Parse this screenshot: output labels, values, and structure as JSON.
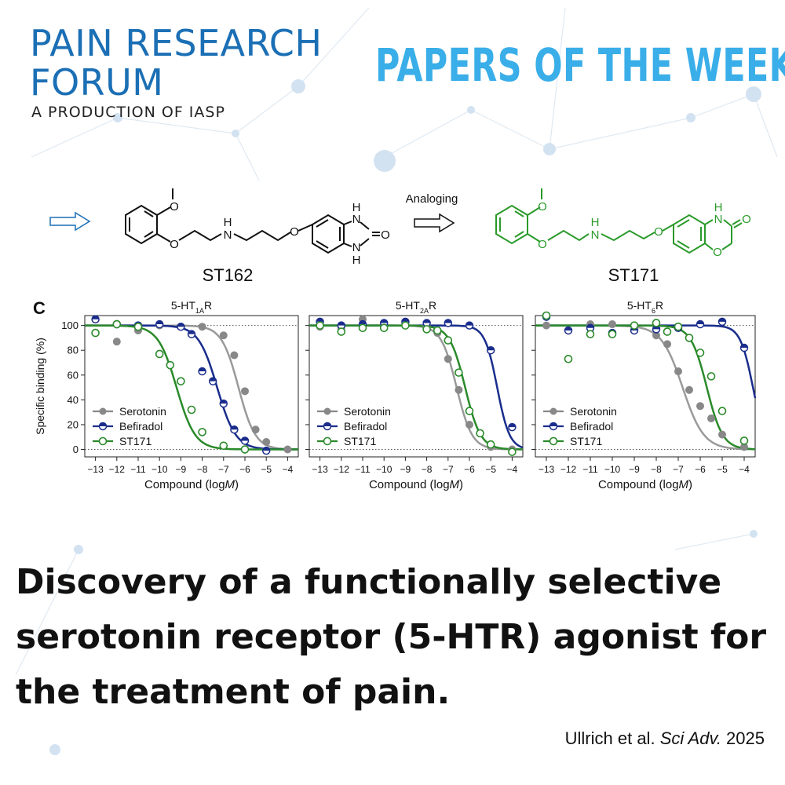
{
  "brand": {
    "line1": "PAIN RESEARCH",
    "line2": "FORUM",
    "sub": "A PRODUCTION OF IASP",
    "series": "PAPERS OF THE WEEK",
    "colors": {
      "brand": "#1b6fb5",
      "series": "#3aaee8"
    }
  },
  "chemistry": {
    "analoging_label": "Analoging",
    "compound_a": "ST162",
    "compound_b": "ST171",
    "atoms": {
      "O": "O",
      "N": "N",
      "H": "H"
    },
    "colors": {
      "compound_a": "#111111",
      "compound_b": "#2a9a2a",
      "arrow_left": "#1b6fb5"
    }
  },
  "chart_data": {
    "panel_label": "C",
    "type": "line",
    "ylabel": "Specific binding (%)",
    "xlabel": "Compound (logM)",
    "xlabel_parts": [
      "Compound (log",
      "M",
      ")"
    ],
    "xlim": [
      -13.5,
      -3.5
    ],
    "ylim": [
      -6,
      108
    ],
    "xticks": [
      -13,
      -12,
      -11,
      -10,
      -9,
      -8,
      -7,
      -6,
      -5,
      -4
    ],
    "yticks": [
      0,
      20,
      40,
      60,
      80,
      100
    ],
    "xtick_labels": [
      "−13",
      "−12",
      "−11",
      "−10",
      "−9",
      "−8",
      "−7",
      "−6",
      "−5",
      "−4"
    ],
    "reference_lines": [
      0,
      100
    ],
    "legend_position": "bottom-left",
    "series_styles": {
      "Serotonin": {
        "color": "#888888",
        "marker": "filled"
      },
      "Befiradol": {
        "color": "#1a2d8c",
        "marker": "half-filled"
      },
      "ST171": {
        "color": "#2a8a2a",
        "marker": "open"
      }
    },
    "panels": [
      {
        "title": "5-HT1AR",
        "title_main": "5-HT",
        "title_sub": "1A",
        "title_end": "R",
        "series": [
          {
            "name": "Serotonin",
            "ec50_log": -6.3,
            "hill": 1.1,
            "points": [
              [
                -12,
                87
              ],
              [
                -11,
                96
              ],
              [
                -10,
                100
              ],
              [
                -9,
                99
              ],
              [
                -8,
                99
              ],
              [
                -7,
                92
              ],
              [
                -6.5,
                76
              ],
              [
                -6,
                47
              ],
              [
                -5.5,
                16
              ],
              [
                -5,
                6
              ],
              [
                -4,
                0
              ]
            ]
          },
          {
            "name": "Befiradol",
            "ec50_log": -7.3,
            "hill": 1.0,
            "points": [
              [
                -13,
                105
              ],
              [
                -12,
                101
              ],
              [
                -11,
                100
              ],
              [
                -10,
                101
              ],
              [
                -9,
                99
              ],
              [
                -8.5,
                93
              ],
              [
                -8,
                63
              ],
              [
                -7.5,
                55
              ],
              [
                -7,
                37
              ],
              [
                -6.5,
                16
              ],
              [
                -6,
                7
              ],
              [
                -5,
                -1
              ]
            ]
          },
          {
            "name": "ST171",
            "ec50_log": -9.2,
            "hill": 1.0,
            "points": [
              [
                -13,
                94
              ],
              [
                -12,
                101
              ],
              [
                -11,
                99
              ],
              [
                -10,
                77
              ],
              [
                -9.5,
                68
              ],
              [
                -9,
                55
              ],
              [
                -8.5,
                32
              ],
              [
                -8,
                14
              ],
              [
                -7,
                3
              ],
              [
                -6,
                0
              ]
            ]
          }
        ]
      },
      {
        "title": "5-HT2AR",
        "title_main": "5-HT",
        "title_sub": "2A",
        "title_end": "R",
        "series": [
          {
            "name": "Serotonin",
            "ec50_log": -6.6,
            "hill": 1.2,
            "points": [
              [
                -13,
                99
              ],
              [
                -12,
                98
              ],
              [
                -11,
                105
              ],
              [
                -10,
                101
              ],
              [
                -9,
                102
              ],
              [
                -8,
                100
              ],
              [
                -7.5,
                94
              ],
              [
                -7,
                73
              ],
              [
                -6.5,
                48
              ],
              [
                -6,
                20
              ],
              [
                -5,
                2
              ],
              [
                -4,
                0
              ]
            ]
          },
          {
            "name": "Befiradol",
            "ec50_log": -4.7,
            "hill": 1.5,
            "points": [
              [
                -13,
                103
              ],
              [
                -12,
                100
              ],
              [
                -11,
                101
              ],
              [
                -10,
                102
              ],
              [
                -9,
                103
              ],
              [
                -8,
                102
              ],
              [
                -7,
                102
              ],
              [
                -6,
                100
              ],
              [
                -5,
                80
              ],
              [
                -4,
                18
              ]
            ]
          },
          {
            "name": "ST171",
            "ec50_log": -6.2,
            "hill": 1.2,
            "points": [
              [
                -13,
                100
              ],
              [
                -12,
                95
              ],
              [
                -11,
                98
              ],
              [
                -10,
                98
              ],
              [
                -9,
                100
              ],
              [
                -8,
                97
              ],
              [
                -7.5,
                96
              ],
              [
                -7,
                88
              ],
              [
                -6.5,
                62
              ],
              [
                -6,
                31
              ],
              [
                -5.5,
                13
              ],
              [
                -5,
                4
              ],
              [
                -4,
                -2
              ]
            ]
          }
        ]
      },
      {
        "title": "5-HT6R",
        "title_main": "5-HT",
        "title_sub": "6",
        "title_end": "R",
        "series": [
          {
            "name": "Serotonin",
            "ec50_log": -6.8,
            "hill": 0.9,
            "points": [
              [
                -13,
                100
              ],
              [
                -11,
                101
              ],
              [
                -10,
                101
              ],
              [
                -9,
                100
              ],
              [
                -8,
                92
              ],
              [
                -7.5,
                85
              ],
              [
                -7,
                63
              ],
              [
                -6.5,
                48
              ],
              [
                -6,
                35
              ],
              [
                -5.5,
                25
              ],
              [
                -5,
                12
              ],
              [
                -4,
                2
              ]
            ]
          },
          {
            "name": "Befiradol",
            "ec50_log": -3.6,
            "hill": 1.5,
            "points": [
              [
                -13,
                107
              ],
              [
                -12,
                96
              ],
              [
                -11,
                98
              ],
              [
                -10,
                94
              ],
              [
                -9,
                96
              ],
              [
                -8,
                97
              ],
              [
                -7,
                98
              ],
              [
                -6,
                101
              ],
              [
                -5,
                103
              ],
              [
                -4,
                82
              ]
            ]
          },
          {
            "name": "ST171",
            "ec50_log": -5.7,
            "hill": 1.2,
            "points": [
              [
                -13,
                108
              ],
              [
                -12,
                73
              ],
              [
                -11,
                93
              ],
              [
                -10,
                93
              ],
              [
                -9,
                100
              ],
              [
                -8,
                102
              ],
              [
                -7.5,
                95
              ],
              [
                -7,
                99
              ],
              [
                -6.5,
                90
              ],
              [
                -6,
                78
              ],
              [
                -5.5,
                59
              ],
              [
                -5,
                31
              ],
              [
                -4,
                7
              ]
            ]
          }
        ]
      }
    ]
  },
  "headline": {
    "line1": "Discovery of a functionally selective",
    "line2": "serotonin receptor (5-HTR) agonist for",
    "line3": "the treatment of pain."
  },
  "citation": {
    "authors": "Ullrich et al. ",
    "journal": "Sci Adv.",
    "year": " 2025"
  }
}
